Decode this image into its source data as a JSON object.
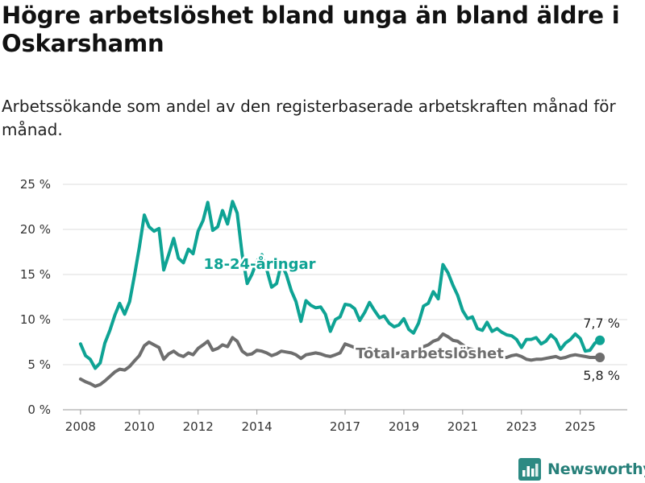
{
  "header": {
    "title": "Högre arbetslöshet bland unga än bland äldre i Oskarshamn",
    "subtitle": "Arbetssökande som andel av den registerbaserade arbetskraften månad för månad."
  },
  "brand": {
    "name": "Newsworthy",
    "color": "#2c8a83"
  },
  "chart_data": {
    "type": "line",
    "title": "Högre arbetslöshet bland unga än bland äldre i Oskarshamn",
    "subtitle": "Arbetssökande som andel av den registerbaserade arbetskraften månad för månad.",
    "ylim": [
      0,
      25
    ],
    "yticks": [
      0,
      5,
      10,
      15,
      20,
      25
    ],
    "ytick_labels": [
      "0 %",
      "5 %",
      "10 %",
      "15 %",
      "20 %",
      "25 %"
    ],
    "xlim": [
      2007.4,
      2026.6
    ],
    "xticks": [
      2008,
      2010,
      2012,
      2014,
      2017,
      2019,
      2021,
      2023,
      2025
    ],
    "xtick_labels": [
      "2008",
      "2010",
      "2012",
      "2014",
      "2017",
      "2019",
      "2021",
      "2023",
      "2025"
    ],
    "grid": true,
    "series": [
      {
        "name": "18-24-åringar",
        "color": "#0ea394",
        "end_label": "7,7 %",
        "points": [
          [
            2008.0,
            7.3
          ],
          [
            2008.17,
            6.0
          ],
          [
            2008.33,
            5.6
          ],
          [
            2008.5,
            4.6
          ],
          [
            2008.67,
            5.2
          ],
          [
            2008.83,
            7.4
          ],
          [
            2009.0,
            8.8
          ],
          [
            2009.17,
            10.5
          ],
          [
            2009.33,
            11.8
          ],
          [
            2009.5,
            10.6
          ],
          [
            2009.67,
            12.0
          ],
          [
            2009.83,
            14.8
          ],
          [
            2010.0,
            18.0
          ],
          [
            2010.17,
            21.6
          ],
          [
            2010.33,
            20.3
          ],
          [
            2010.5,
            19.8
          ],
          [
            2010.67,
            20.1
          ],
          [
            2010.83,
            15.5
          ],
          [
            2011.0,
            17.2
          ],
          [
            2011.17,
            19.0
          ],
          [
            2011.33,
            16.8
          ],
          [
            2011.5,
            16.3
          ],
          [
            2011.67,
            17.8
          ],
          [
            2011.83,
            17.3
          ],
          [
            2012.0,
            19.8
          ],
          [
            2012.17,
            21.0
          ],
          [
            2012.33,
            23.0
          ],
          [
            2012.5,
            19.9
          ],
          [
            2012.67,
            20.3
          ],
          [
            2012.83,
            22.1
          ],
          [
            2013.0,
            20.6
          ],
          [
            2013.17,
            23.1
          ],
          [
            2013.33,
            21.8
          ],
          [
            2013.5,
            17.2
          ],
          [
            2013.67,
            14.0
          ],
          [
            2013.83,
            15.0
          ],
          [
            2014.0,
            16.5
          ],
          [
            2014.17,
            17.2
          ],
          [
            2014.33,
            15.6
          ],
          [
            2014.5,
            13.6
          ],
          [
            2014.67,
            14.0
          ],
          [
            2014.83,
            16.2
          ],
          [
            2015.0,
            15.0
          ],
          [
            2015.17,
            13.2
          ],
          [
            2015.33,
            12.0
          ],
          [
            2015.5,
            9.8
          ],
          [
            2015.67,
            12.1
          ],
          [
            2015.83,
            11.6
          ],
          [
            2016.0,
            11.3
          ],
          [
            2016.17,
            11.4
          ],
          [
            2016.33,
            10.6
          ],
          [
            2016.5,
            8.7
          ],
          [
            2016.67,
            10.0
          ],
          [
            2016.83,
            10.3
          ],
          [
            2017.0,
            11.7
          ],
          [
            2017.17,
            11.6
          ],
          [
            2017.33,
            11.2
          ],
          [
            2017.5,
            9.9
          ],
          [
            2017.67,
            10.8
          ],
          [
            2017.83,
            11.9
          ],
          [
            2018.0,
            11.0
          ],
          [
            2018.17,
            10.2
          ],
          [
            2018.33,
            10.4
          ],
          [
            2018.5,
            9.6
          ],
          [
            2018.67,
            9.2
          ],
          [
            2018.83,
            9.4
          ],
          [
            2019.0,
            10.1
          ],
          [
            2019.17,
            8.9
          ],
          [
            2019.33,
            8.5
          ],
          [
            2019.5,
            9.6
          ],
          [
            2019.67,
            11.5
          ],
          [
            2019.83,
            11.8
          ],
          [
            2020.0,
            13.1
          ],
          [
            2020.17,
            12.3
          ],
          [
            2020.33,
            16.1
          ],
          [
            2020.5,
            15.2
          ],
          [
            2020.67,
            13.8
          ],
          [
            2020.83,
            12.7
          ],
          [
            2021.0,
            11.0
          ],
          [
            2021.17,
            10.1
          ],
          [
            2021.33,
            10.3
          ],
          [
            2021.5,
            9.0
          ],
          [
            2021.67,
            8.8
          ],
          [
            2021.83,
            9.7
          ],
          [
            2022.0,
            8.7
          ],
          [
            2022.17,
            9.0
          ],
          [
            2022.33,
            8.6
          ],
          [
            2022.5,
            8.3
          ],
          [
            2022.67,
            8.2
          ],
          [
            2022.83,
            7.8
          ],
          [
            2023.0,
            6.9
          ],
          [
            2023.17,
            7.8
          ],
          [
            2023.33,
            7.8
          ],
          [
            2023.5,
            8.0
          ],
          [
            2023.67,
            7.3
          ],
          [
            2023.83,
            7.6
          ],
          [
            2024.0,
            8.3
          ],
          [
            2024.17,
            7.8
          ],
          [
            2024.33,
            6.7
          ],
          [
            2024.5,
            7.4
          ],
          [
            2024.67,
            7.8
          ],
          [
            2024.83,
            8.4
          ],
          [
            2025.0,
            7.9
          ],
          [
            2025.17,
            6.5
          ],
          [
            2025.33,
            6.6
          ],
          [
            2025.5,
            7.4
          ],
          [
            2025.67,
            7.7
          ]
        ]
      },
      {
        "name": "Total arbetslöshet",
        "color": "#6e6e6e",
        "end_label": "5,8 %",
        "points": [
          [
            2008.0,
            3.4
          ],
          [
            2008.17,
            3.1
          ],
          [
            2008.33,
            2.9
          ],
          [
            2008.5,
            2.6
          ],
          [
            2008.67,
            2.8
          ],
          [
            2008.83,
            3.2
          ],
          [
            2009.0,
            3.7
          ],
          [
            2009.17,
            4.2
          ],
          [
            2009.33,
            4.5
          ],
          [
            2009.5,
            4.4
          ],
          [
            2009.67,
            4.8
          ],
          [
            2009.83,
            5.4
          ],
          [
            2010.0,
            6.0
          ],
          [
            2010.17,
            7.1
          ],
          [
            2010.33,
            7.5
          ],
          [
            2010.5,
            7.2
          ],
          [
            2010.67,
            6.9
          ],
          [
            2010.83,
            5.6
          ],
          [
            2011.0,
            6.2
          ],
          [
            2011.17,
            6.5
          ],
          [
            2011.33,
            6.1
          ],
          [
            2011.5,
            5.9
          ],
          [
            2011.67,
            6.3
          ],
          [
            2011.83,
            6.1
          ],
          [
            2012.0,
            6.8
          ],
          [
            2012.17,
            7.2
          ],
          [
            2012.33,
            7.6
          ],
          [
            2012.5,
            6.6
          ],
          [
            2012.67,
            6.8
          ],
          [
            2012.83,
            7.2
          ],
          [
            2013.0,
            7.0
          ],
          [
            2013.17,
            8.0
          ],
          [
            2013.33,
            7.6
          ],
          [
            2013.5,
            6.5
          ],
          [
            2013.67,
            6.1
          ],
          [
            2013.83,
            6.2
          ],
          [
            2014.0,
            6.6
          ],
          [
            2014.17,
            6.5
          ],
          [
            2014.33,
            6.3
          ],
          [
            2014.5,
            6.0
          ],
          [
            2014.67,
            6.2
          ],
          [
            2014.83,
            6.5
          ],
          [
            2015.0,
            6.4
          ],
          [
            2015.17,
            6.3
          ],
          [
            2015.33,
            6.1
          ],
          [
            2015.5,
            5.7
          ],
          [
            2015.67,
            6.1
          ],
          [
            2015.83,
            6.2
          ],
          [
            2016.0,
            6.3
          ],
          [
            2016.17,
            6.2
          ],
          [
            2016.33,
            6.0
          ],
          [
            2016.5,
            5.9
          ],
          [
            2016.67,
            6.1
          ],
          [
            2016.83,
            6.3
          ],
          [
            2017.0,
            7.3
          ],
          [
            2017.17,
            7.1
          ],
          [
            2017.33,
            6.9
          ],
          [
            2017.5,
            6.6
          ],
          [
            2017.67,
            6.6
          ],
          [
            2017.83,
            6.8
          ],
          [
            2018.0,
            6.5
          ],
          [
            2018.17,
            6.4
          ],
          [
            2018.33,
            6.3
          ],
          [
            2018.5,
            6.2
          ],
          [
            2018.67,
            6.2
          ],
          [
            2018.83,
            6.3
          ],
          [
            2019.0,
            6.3
          ],
          [
            2019.17,
            6.2
          ],
          [
            2019.33,
            6.3
          ],
          [
            2019.5,
            6.6
          ],
          [
            2019.67,
            7.0
          ],
          [
            2019.83,
            7.2
          ],
          [
            2020.0,
            7.6
          ],
          [
            2020.17,
            7.8
          ],
          [
            2020.33,
            8.4
          ],
          [
            2020.5,
            8.1
          ],
          [
            2020.67,
            7.7
          ],
          [
            2020.83,
            7.6
          ],
          [
            2021.0,
            7.2
          ],
          [
            2021.17,
            6.8
          ],
          [
            2021.33,
            6.7
          ],
          [
            2021.5,
            6.4
          ],
          [
            2021.67,
            6.2
          ],
          [
            2021.83,
            6.3
          ],
          [
            2022.0,
            6.0
          ],
          [
            2022.17,
            5.9
          ],
          [
            2022.33,
            5.8
          ],
          [
            2022.5,
            5.8
          ],
          [
            2022.67,
            6.0
          ],
          [
            2022.83,
            6.1
          ],
          [
            2023.0,
            5.9
          ],
          [
            2023.17,
            5.6
          ],
          [
            2023.33,
            5.5
          ],
          [
            2023.5,
            5.6
          ],
          [
            2023.67,
            5.6
          ],
          [
            2023.83,
            5.7
          ],
          [
            2024.0,
            5.8
          ],
          [
            2024.17,
            5.9
          ],
          [
            2024.33,
            5.7
          ],
          [
            2024.5,
            5.8
          ],
          [
            2024.67,
            6.0
          ],
          [
            2024.83,
            6.1
          ],
          [
            2025.0,
            6.0
          ],
          [
            2025.17,
            5.9
          ],
          [
            2025.33,
            5.8
          ],
          [
            2025.5,
            5.8
          ],
          [
            2025.67,
            5.8
          ]
        ]
      }
    ]
  }
}
